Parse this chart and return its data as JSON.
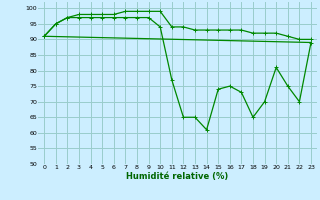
{
  "xlabel": "Humidité relative (%)",
  "background_color": "#cceeff",
  "grid_color": "#99cccc",
  "line_color": "#008800",
  "ylim": [
    50,
    102
  ],
  "xlim": [
    -0.5,
    23.5
  ],
  "yticks": [
    50,
    55,
    60,
    65,
    70,
    75,
    80,
    85,
    90,
    95,
    100
  ],
  "xticks": [
    0,
    1,
    2,
    3,
    4,
    5,
    6,
    7,
    8,
    9,
    10,
    11,
    12,
    13,
    14,
    15,
    16,
    17,
    18,
    19,
    20,
    21,
    22,
    23
  ],
  "line1_x": [
    0,
    1,
    2,
    3,
    4,
    5,
    6,
    7,
    8,
    9,
    10,
    11,
    12,
    13,
    14,
    15,
    16,
    17,
    18,
    19,
    20,
    21,
    22,
    23
  ],
  "line1_y": [
    91,
    95,
    97,
    97,
    97,
    97,
    97,
    97,
    97,
    97,
    94,
    77,
    65,
    65,
    61,
    74,
    75,
    73,
    65,
    70,
    81,
    75,
    70,
    89
  ],
  "line2_x": [
    0,
    1,
    2,
    3,
    4,
    5,
    6,
    7,
    8,
    9,
    10,
    11,
    12,
    13,
    14,
    15,
    16,
    17,
    18,
    19,
    20,
    21,
    22,
    23
  ],
  "line2_y": [
    91,
    95,
    97,
    98,
    98,
    98,
    98,
    99,
    99,
    99,
    99,
    94,
    94,
    93,
    93,
    93,
    93,
    93,
    92,
    92,
    92,
    91,
    90,
    90
  ],
  "line3_x": [
    0,
    23
  ],
  "line3_y": [
    91,
    89
  ]
}
